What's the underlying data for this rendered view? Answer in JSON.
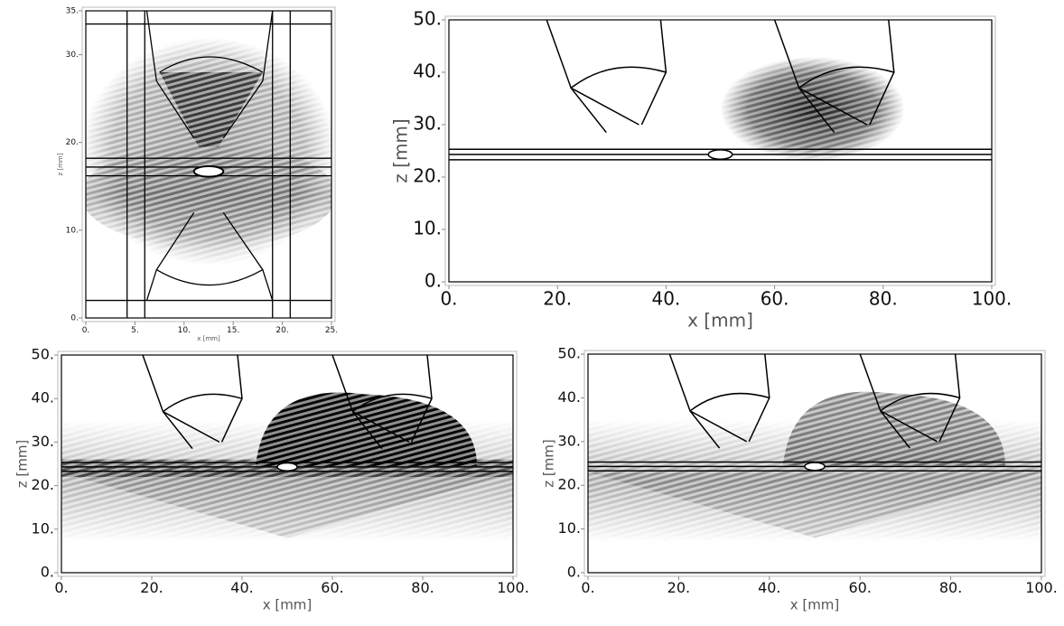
{
  "chart_data": [
    {
      "type": "field",
      "xlabel": "x [mm]",
      "ylabel": "z [mm]",
      "xlim": [
        0,
        25
      ],
      "ylim": [
        0,
        35
      ],
      "xticks": [
        {
          "value": 0,
          "label": "0."
        },
        {
          "value": 5,
          "label": "5."
        },
        {
          "value": 10,
          "label": "10."
        },
        {
          "value": 15,
          "label": "15."
        },
        {
          "value": 20,
          "label": "20."
        },
        {
          "value": 25,
          "label": "25."
        }
      ],
      "yticks": [
        {
          "value": 0,
          "label": "0."
        },
        {
          "value": 10,
          "label": "10."
        },
        {
          "value": 20,
          "label": "20."
        },
        {
          "value": 30,
          "label": "30."
        },
        {
          "value": 35,
          "label": "35."
        }
      ]
    },
    {
      "type": "field",
      "xlabel": "x [mm]",
      "ylabel": "z [mm]",
      "xlim": [
        0,
        100
      ],
      "ylim": [
        0,
        50
      ],
      "xticks": [
        {
          "value": 0,
          "label": "0."
        },
        {
          "value": 20,
          "label": "20."
        },
        {
          "value": 40,
          "label": "40."
        },
        {
          "value": 60,
          "label": "60."
        },
        {
          "value": 80,
          "label": "80."
        },
        {
          "value": 100,
          "label": "100."
        }
      ],
      "yticks": [
        {
          "value": 0,
          "label": "0."
        },
        {
          "value": 10,
          "label": "10."
        },
        {
          "value": 20,
          "label": "20."
        },
        {
          "value": 30,
          "label": "30."
        },
        {
          "value": 40,
          "label": "40."
        },
        {
          "value": 50,
          "label": "50."
        }
      ]
    },
    {
      "type": "field",
      "xlabel": "x [mm]",
      "ylabel": "z [mm]",
      "xlim": [
        0,
        100
      ],
      "ylim": [
        0,
        50
      ],
      "xticks": [
        {
          "value": 0,
          "label": "0."
        },
        {
          "value": 20,
          "label": "20."
        },
        {
          "value": 40,
          "label": "40."
        },
        {
          "value": 60,
          "label": "60."
        },
        {
          "value": 80,
          "label": "80."
        },
        {
          "value": 100,
          "label": "100."
        }
      ],
      "yticks": [
        {
          "value": 0,
          "label": "0."
        },
        {
          "value": 10,
          "label": "10."
        },
        {
          "value": 20,
          "label": "20."
        },
        {
          "value": 30,
          "label": "30."
        },
        {
          "value": 40,
          "label": "40."
        },
        {
          "value": 50,
          "label": "50."
        }
      ]
    },
    {
      "type": "field",
      "xlabel": "x [mm]",
      "ylabel": "z [mm]",
      "xlim": [
        0,
        100
      ],
      "ylim": [
        0,
        50
      ],
      "xticks": [
        {
          "value": 0,
          "label": "0."
        },
        {
          "value": 20,
          "label": "20."
        },
        {
          "value": 40,
          "label": "40."
        },
        {
          "value": 60,
          "label": "60."
        },
        {
          "value": 80,
          "label": "80."
        },
        {
          "value": 100,
          "label": "100."
        }
      ],
      "yticks": [
        {
          "value": 0,
          "label": "0."
        },
        {
          "value": 10,
          "label": "10."
        },
        {
          "value": 20,
          "label": "20."
        },
        {
          "value": 30,
          "label": "30."
        },
        {
          "value": 40,
          "label": "40."
        },
        {
          "value": 50,
          "label": "50."
        }
      ]
    }
  ]
}
